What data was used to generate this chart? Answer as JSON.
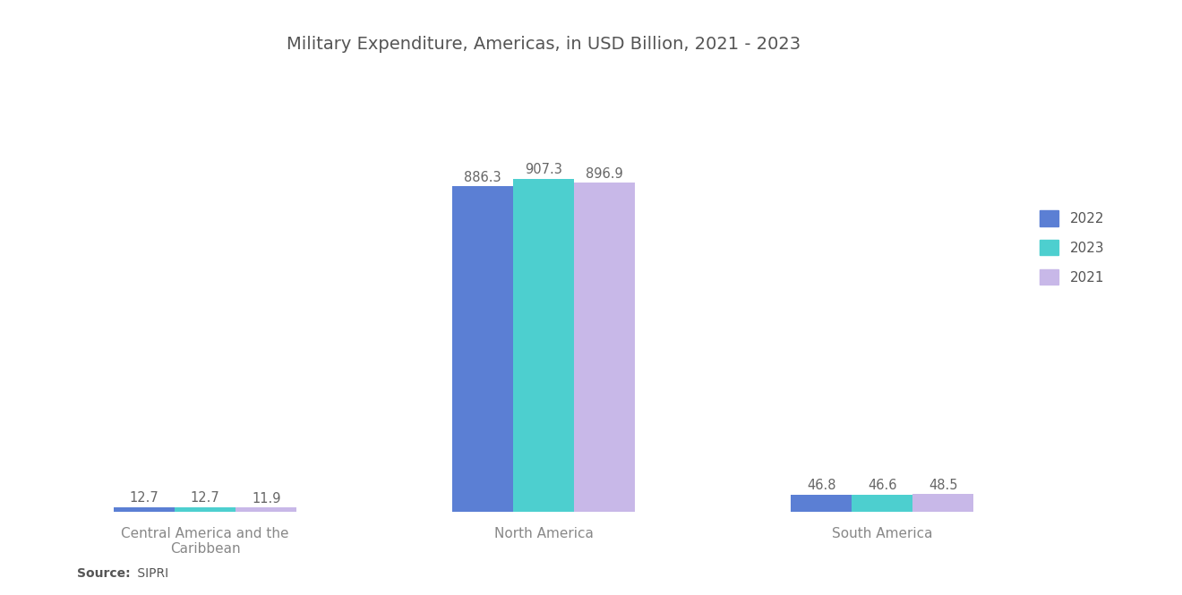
{
  "title": "Military Expenditure, Americas, in USD Billion, 2021 - 2023",
  "categories": [
    "Central America and the\nCaribbean",
    "North America",
    "South America"
  ],
  "series": {
    "2022": [
      12.7,
      886.3,
      46.8
    ],
    "2023": [
      12.7,
      907.3,
      46.6
    ],
    "2021": [
      11.9,
      896.9,
      48.5
    ]
  },
  "colors": {
    "2022": "#5B7FD4",
    "2023": "#4DCFCF",
    "2021": "#C8B8E8"
  },
  "legend_order": [
    "2022",
    "2023",
    "2021"
  ],
  "source_bold": "Source:",
  "source_rest": " SIPRI",
  "background_color": "#FFFFFF",
  "bar_width": 0.18,
  "ylim": [
    0,
    1200
  ],
  "title_fontsize": 14,
  "label_fontsize": 10.5,
  "tick_fontsize": 11,
  "source_fontsize": 10,
  "label_color": "#666666",
  "tick_color": "#888888"
}
